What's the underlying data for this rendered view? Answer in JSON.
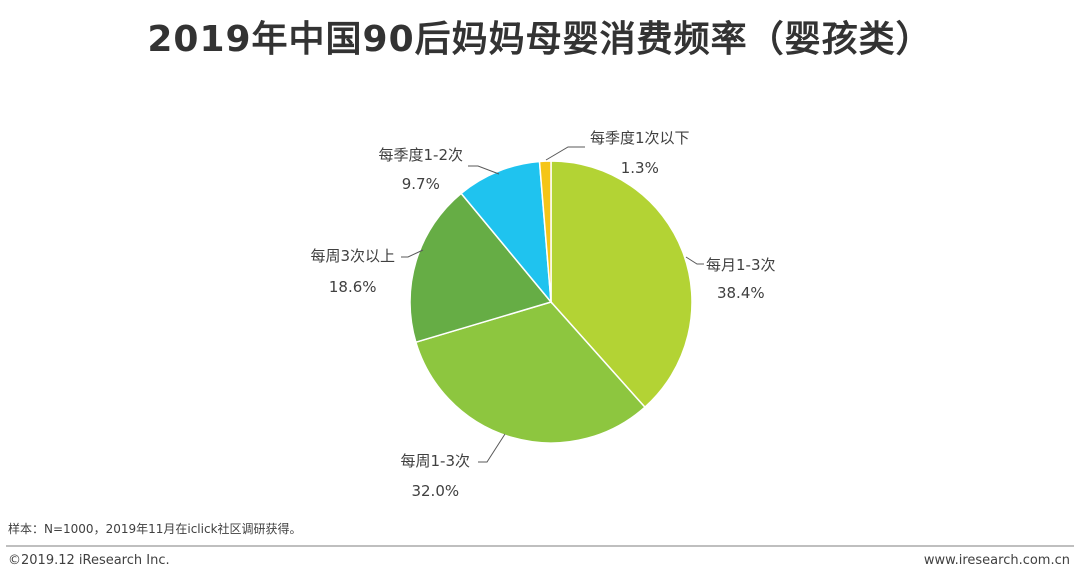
{
  "title": "2019年中国90后妈妈母婴消费频率（婴孩类）",
  "chart_data": {
    "type": "pie",
    "title": "2019年中国90后妈妈母婴消费频率（婴孩类）",
    "slices": [
      {
        "label": "每月1-3次",
        "value": 38.4,
        "value_label": "38.4%",
        "color": "#b3d334"
      },
      {
        "label": "每周1-3次",
        "value": 32.0,
        "value_label": "32.0%",
        "color": "#8dc63f"
      },
      {
        "label": "每周3次以上",
        "value": 18.6,
        "value_label": "18.6%",
        "color": "#66ad45"
      },
      {
        "label": "每季度1-2次",
        "value": 9.7,
        "value_label": "9.7%",
        "color": "#1fc3ef"
      },
      {
        "label": "每季度1次以下",
        "value": 1.3,
        "value_label": "1.3%",
        "color": "#f5c518"
      }
    ],
    "legend": "none"
  },
  "note": "样本：N=1000，2019年11月在iclick社区调研获得。",
  "footer": {
    "copyright": "©2019.12 iResearch Inc.",
    "website": "www.iresearch.com.cn"
  }
}
